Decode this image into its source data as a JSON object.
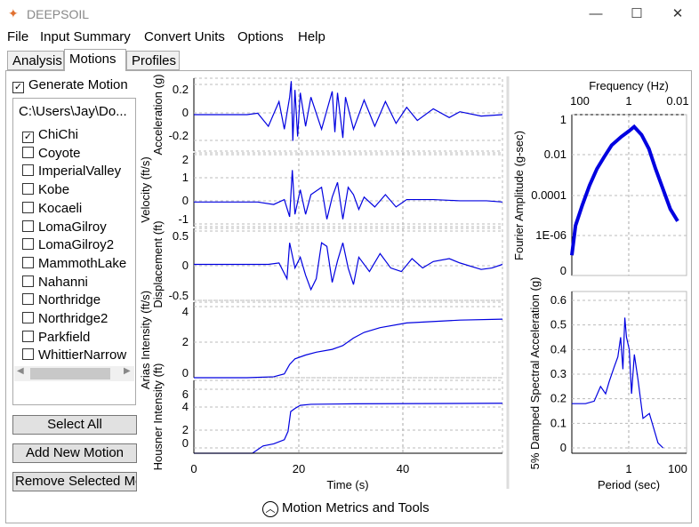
{
  "window": {
    "title": "DEEPSOIL",
    "min": "—",
    "max": "☐",
    "close": "✕"
  },
  "menu": [
    "File",
    "Input Summary",
    "Convert Units",
    "Options",
    "Help"
  ],
  "tabs": [
    "Analysis",
    "Motions",
    "Profiles"
  ],
  "generate_motion": {
    "label": "Generate Motion",
    "checked": true
  },
  "path": "C:\\Users\\Jay\\Do...",
  "motions": [
    {
      "name": "ChiChi",
      "checked": true
    },
    {
      "name": "Coyote",
      "checked": false
    },
    {
      "name": "ImperialValley",
      "checked": false
    },
    {
      "name": "Kobe",
      "checked": false
    },
    {
      "name": "Kocaeli",
      "checked": false
    },
    {
      "name": "LomaGilroy",
      "checked": false
    },
    {
      "name": "LomaGilroy2",
      "checked": false
    },
    {
      "name": "MammothLake",
      "checked": false
    },
    {
      "name": "Nahanni",
      "checked": false
    },
    {
      "name": "Northridge",
      "checked": false
    },
    {
      "name": "Northridge2",
      "checked": false
    },
    {
      "name": "Parkfield",
      "checked": false
    },
    {
      "name": "WhittierNarrow",
      "checked": false
    }
  ],
  "buttons": {
    "select_all": "Select All",
    "add": "Add New Motion",
    "remove": "Remove Selected Motion"
  },
  "footer": {
    "label": "Motion Metrics and Tools",
    "icon": "chevron-up-circle-icon"
  },
  "colors": {
    "line": "#0000e0"
  },
  "chart_data": [
    {
      "type": "line",
      "ylabel": "Acceleration (g)",
      "yticks": [
        "0.2",
        "0",
        "-0.2"
      ],
      "ylim": [
        -0.25,
        0.25
      ],
      "x": [
        0,
        10,
        12,
        14,
        16,
        17,
        18,
        18.3,
        18.6,
        19,
        19.5,
        20,
        21,
        22,
        24,
        26,
        26.5,
        27,
        28,
        28.5,
        30,
        32,
        34,
        36,
        38,
        40,
        42,
        45,
        48,
        50,
        54,
        58
      ],
      "y": [
        0,
        0,
        0.01,
        -0.08,
        0.09,
        -0.1,
        0.12,
        0.23,
        -0.18,
        0.17,
        -0.15,
        0.15,
        -0.08,
        0.12,
        -0.1,
        0.16,
        -0.12,
        0.15,
        -0.16,
        0.12,
        -0.1,
        0.1,
        -0.08,
        0.09,
        -0.06,
        0.05,
        -0.04,
        0.04,
        -0.02,
        0.02,
        -0.01,
        0
      ]
    },
    {
      "type": "line",
      "ylabel": "Velocity (ft/s)",
      "yticks": [
        "2",
        "1",
        "0",
        "-1"
      ],
      "ylim": [
        -1,
        2
      ],
      "x": [
        0,
        12,
        15,
        17,
        18,
        18.5,
        19,
        20,
        21,
        22,
        24,
        25,
        26,
        27,
        28,
        29,
        30,
        31,
        32,
        34,
        36,
        38,
        40,
        45,
        50,
        55,
        58
      ],
      "y": [
        0,
        0,
        -0.1,
        0.1,
        -0.6,
        1.3,
        -0.5,
        0.5,
        -0.5,
        0.3,
        0.6,
        -0.7,
        0.2,
        0.8,
        -0.7,
        0.6,
        0.3,
        -0.3,
        0.2,
        -0.2,
        0.3,
        -0.2,
        0.1,
        0.1,
        0.05,
        0.05,
        0
      ]
    },
    {
      "type": "line",
      "ylabel": "Displacement (ft)",
      "yticks": [
        "0.5",
        "0",
        "-0.5"
      ],
      "ylim": [
        -0.5,
        0.5
      ],
      "x": [
        0,
        14,
        16,
        17.5,
        18,
        19,
        20,
        21,
        22,
        23,
        24,
        25,
        26,
        27,
        28,
        29,
        30,
        31,
        33,
        35,
        37,
        39,
        41,
        43,
        45,
        48,
        50,
        54,
        56,
        58
      ],
      "y": [
        0,
        0,
        0.02,
        -0.2,
        0.3,
        -0.05,
        0.1,
        -0.15,
        -0.35,
        -0.2,
        0.3,
        0.25,
        -0.25,
        0.05,
        0.3,
        -0.05,
        -0.28,
        0.1,
        -0.1,
        0.15,
        -0.05,
        -0.1,
        0.08,
        -0.05,
        0.04,
        0.08,
        0.02,
        -0.07,
        -0.05,
        0
      ]
    },
    {
      "type": "line",
      "ylabel": "Arias Intensity (ft/s)",
      "yticks": [
        "4",
        "2",
        "0"
      ],
      "ylim": [
        0,
        4
      ],
      "x": [
        0,
        10,
        15,
        17,
        18,
        19,
        21,
        23,
        26,
        28,
        30,
        32,
        35,
        40,
        50,
        58
      ],
      "y": [
        0,
        0,
        0.05,
        0.2,
        0.7,
        1.0,
        1.2,
        1.35,
        1.5,
        1.7,
        2.1,
        2.4,
        2.65,
        2.9,
        3.05,
        3.1
      ]
    },
    {
      "type": "line",
      "ylabel": "Housner Intensity (ft)",
      "yticks": [
        "6",
        "4",
        "2",
        "0"
      ],
      "ylim": [
        -0.5,
        6.5
      ],
      "xlabel": "Time (s)",
      "xticks": [
        "0",
        "20",
        "40"
      ],
      "xlim": [
        0,
        58
      ],
      "x": [
        0,
        11,
        13,
        15,
        17,
        17.7,
        18.2,
        19,
        20,
        22,
        30,
        58
      ],
      "y": [
        -0.5,
        -0.5,
        0.2,
        0.4,
        0.8,
        1.6,
        3.5,
        3.8,
        4.1,
        4.2,
        4.25,
        4.3
      ]
    },
    {
      "type": "line",
      "ylabel": "Fourier Amplitude (g-sec)",
      "xlabel": "Frequency (Hz)",
      "xscale": "log",
      "yscale": "log",
      "xticks": [
        "100",
        "1",
        "0.01"
      ],
      "yticks": [
        "1",
        "0.01",
        "0.0001",
        "1E-06",
        "0"
      ],
      "x": [
        250,
        150,
        80,
        40,
        20,
        10,
        5,
        2,
        1,
        0.6,
        0.3,
        0.15,
        0.08,
        0.04,
        0.02,
        0.01
      ],
      "y": [
        1e-07,
        3e-06,
        3e-05,
        0.0003,
        0.002,
        0.008,
        0.03,
        0.08,
        0.15,
        0.25,
        0.1,
        0.02,
        0.002,
        0.0002,
        2e-05,
        5e-06
      ]
    },
    {
      "type": "line",
      "ylabel": "5% Damped Spectral Acceleration (g)",
      "xlabel": "Period (sec)",
      "xscale": "log",
      "xticks": [
        "1",
        "100"
      ],
      "yticks": [
        "0.6",
        "0.5",
        "0.4",
        "0.3",
        "0.2",
        "0.1",
        "0"
      ],
      "ylim": [
        -0.025,
        0.65
      ],
      "x": [
        0.01,
        0.03,
        0.06,
        0.1,
        0.15,
        0.2,
        0.3,
        0.4,
        0.5,
        0.6,
        0.7,
        0.8,
        1,
        1.2,
        1.5,
        2,
        3,
        5,
        10,
        15
      ],
      "y": [
        0.18,
        0.18,
        0.19,
        0.25,
        0.22,
        0.27,
        0.33,
        0.37,
        0.45,
        0.32,
        0.53,
        0.45,
        0.4,
        0.22,
        0.38,
        0.28,
        0.12,
        0.14,
        0.02,
        0
      ]
    }
  ]
}
